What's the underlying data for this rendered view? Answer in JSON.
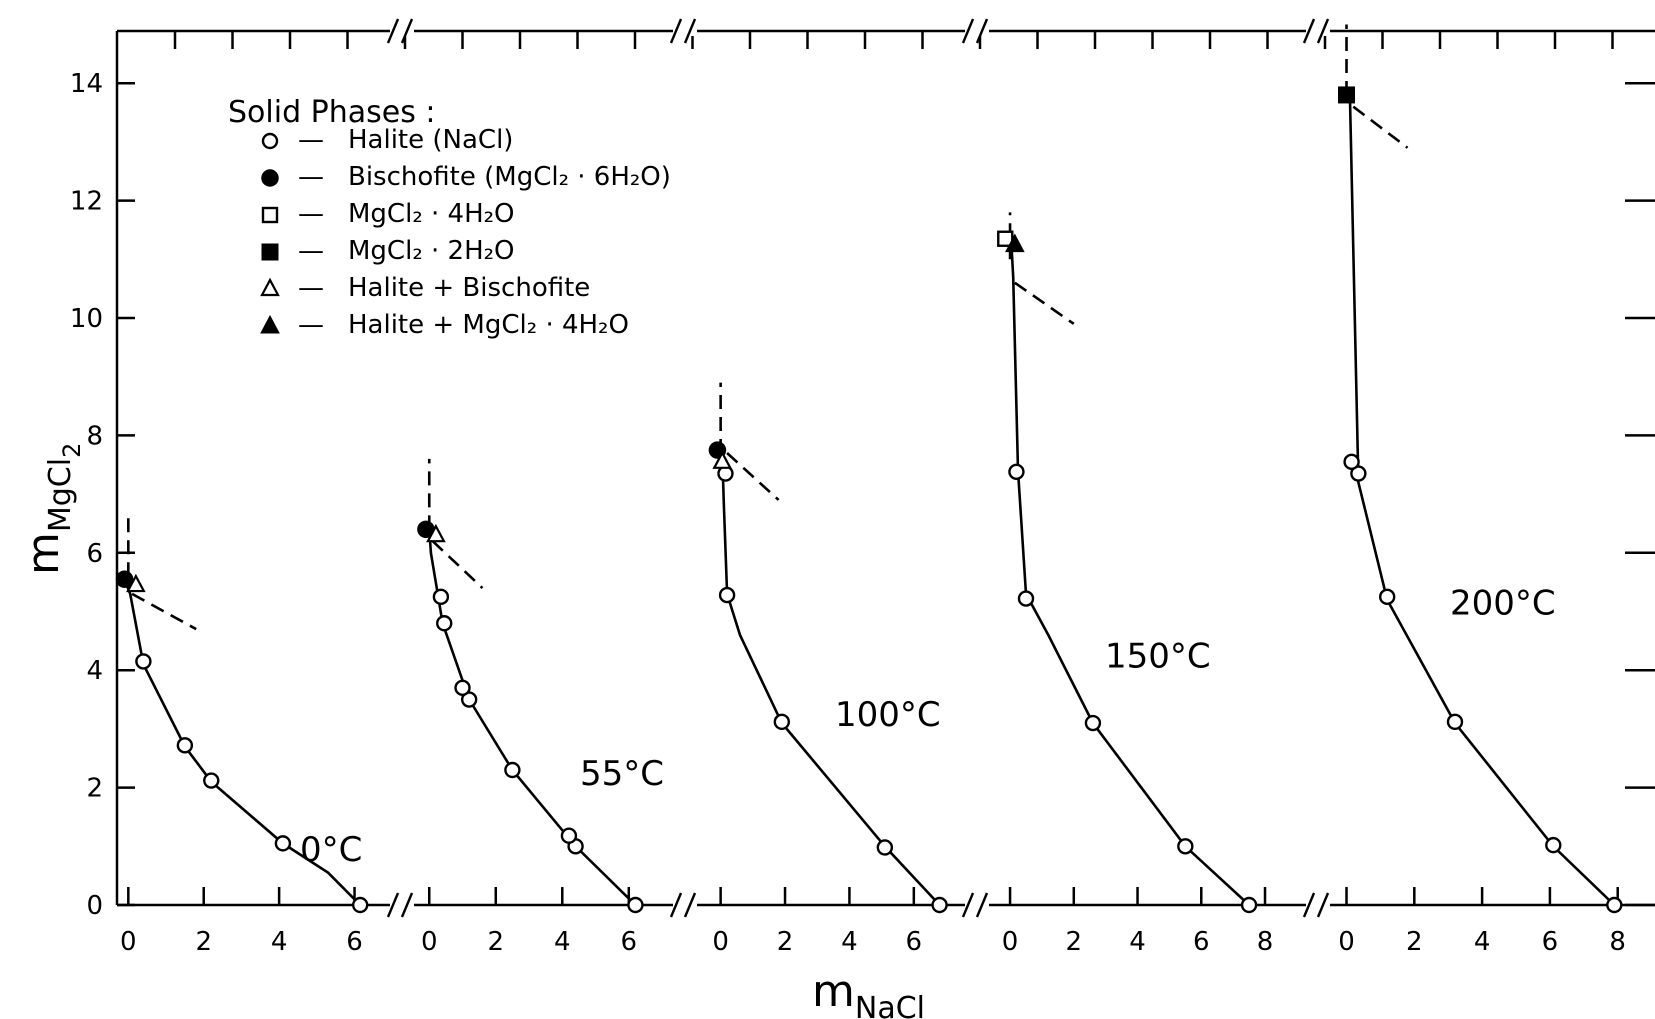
{
  "chart_data": {
    "type": "scatter",
    "xlabel_main": "m",
    "xlabel_sub": "NaCl",
    "ylabel_main": "m",
    "ylabel_sub": "MgCl",
    "ylabel_subsub": "2",
    "ylim": [
      0,
      14
    ],
    "y_ticks": [
      "0",
      "2",
      "4",
      "6",
      "8",
      "10",
      "12",
      "14"
    ],
    "grid": false,
    "legend": {
      "placement": "top-left",
      "title": "Solid  Phases :",
      "entries": [
        {
          "marker": "open-circle",
          "dash": "—",
          "label": "Halite (NaCl)"
        },
        {
          "marker": "filled-circle",
          "dash": "—",
          "label": "Bischofite (MgCl₂ · 6H₂O)"
        },
        {
          "marker": "open-square",
          "dash": "—",
          "label": "MgCl₂ · 4H₂O"
        },
        {
          "marker": "filled-square",
          "dash": "—",
          "label": "MgCl₂ · 2H₂O"
        },
        {
          "marker": "open-triangle",
          "dash": "—",
          "label": "Halite + Bischofite"
        },
        {
          "marker": "filled-triangle",
          "dash": "—",
          "label": "Halite + MgCl₂ · 4H₂O"
        }
      ]
    },
    "panels": [
      {
        "label": "0°C",
        "x_ticks": [
          "0",
          "2",
          "4",
          "6"
        ],
        "xlim": [
          -0.3,
          7.1
        ],
        "curve": [
          [
            6.15,
            0
          ],
          [
            5.3,
            0.55
          ],
          [
            4.1,
            1.05
          ],
          [
            2.2,
            2.1
          ],
          [
            1.5,
            2.7
          ],
          [
            0.4,
            4.1
          ],
          [
            0.05,
            5.3
          ],
          [
            -0.1,
            5.55
          ]
        ],
        "points": [
          {
            "x": 6.15,
            "y": 0.0,
            "marker": "open-circle"
          },
          {
            "x": 4.1,
            "y": 1.05,
            "marker": "open-circle"
          },
          {
            "x": 2.2,
            "y": 2.12,
            "marker": "open-circle"
          },
          {
            "x": 1.5,
            "y": 2.72,
            "marker": "open-circle"
          },
          {
            "x": 0.4,
            "y": 4.15,
            "marker": "open-circle"
          },
          {
            "x": -0.1,
            "y": 5.55,
            "marker": "filled-circle"
          },
          {
            "x": 0.2,
            "y": 5.45,
            "marker": "open-triangle"
          }
        ],
        "dashed": [
          [
            [
              0.0,
              5.6
            ],
            [
              0.0,
              6.6
            ]
          ],
          [
            [
              0.1,
              5.3
            ],
            [
              1.8,
              4.7
            ]
          ]
        ]
      },
      {
        "label": "55°C",
        "x_ticks": [
          "0",
          "2",
          "4",
          "6"
        ],
        "xlim": [
          -1.0,
          7.6
        ],
        "curve": [
          [
            6.2,
            0
          ],
          [
            4.4,
            1.0
          ],
          [
            2.5,
            2.3
          ],
          [
            1.2,
            3.5
          ],
          [
            0.4,
            4.8
          ],
          [
            0.05,
            6.0
          ],
          [
            0.0,
            6.4
          ]
        ],
        "points": [
          {
            "x": 6.2,
            "y": 0.0,
            "marker": "open-circle"
          },
          {
            "x": 4.4,
            "y": 1.0,
            "marker": "open-circle"
          },
          {
            "x": 4.2,
            "y": 1.18,
            "marker": "open-circle"
          },
          {
            "x": 2.5,
            "y": 2.3,
            "marker": "open-circle"
          },
          {
            "x": 1.2,
            "y": 3.5,
            "marker": "open-circle"
          },
          {
            "x": 1.0,
            "y": 3.7,
            "marker": "open-circle"
          },
          {
            "x": 0.45,
            "y": 4.8,
            "marker": "open-circle"
          },
          {
            "x": 0.35,
            "y": 5.25,
            "marker": "open-circle"
          },
          {
            "x": -0.1,
            "y": 6.4,
            "marker": "filled-circle"
          },
          {
            "x": 0.2,
            "y": 6.3,
            "marker": "open-triangle"
          }
        ],
        "dashed": [
          [
            [
              0.0,
              6.4
            ],
            [
              0.0,
              7.6
            ]
          ],
          [
            [
              0.1,
              6.2
            ],
            [
              1.6,
              5.4
            ]
          ]
        ]
      },
      {
        "label": "100°C",
        "x_ticks": [
          "0",
          "2",
          "4",
          "6"
        ],
        "xlim": [
          -1.2,
          7.9
        ],
        "curve": [
          [
            6.8,
            0
          ],
          [
            5.1,
            1.0
          ],
          [
            1.9,
            3.1
          ],
          [
            0.6,
            4.6
          ],
          [
            0.2,
            5.3
          ],
          [
            0.1,
            6.8
          ],
          [
            0.05,
            7.7
          ]
        ],
        "points": [
          {
            "x": 6.8,
            "y": 0.0,
            "marker": "open-circle"
          },
          {
            "x": 5.1,
            "y": 0.98,
            "marker": "open-circle"
          },
          {
            "x": 1.9,
            "y": 3.12,
            "marker": "open-circle"
          },
          {
            "x": 0.2,
            "y": 5.28,
            "marker": "open-circle"
          },
          {
            "x": 0.15,
            "y": 7.35,
            "marker": "open-circle"
          },
          {
            "x": -0.1,
            "y": 7.75,
            "marker": "filled-circle"
          },
          {
            "x": 0.05,
            "y": 7.55,
            "marker": "open-triangle"
          }
        ],
        "dashed": [
          [
            [
              0.0,
              7.7
            ],
            [
              0.0,
              8.9
            ]
          ],
          [
            [
              0.2,
              7.7
            ],
            [
              1.8,
              6.9
            ]
          ]
        ]
      },
      {
        "label": "150°C",
        "x_ticks": [
          "0",
          "2",
          "4",
          "6",
          "8"
        ],
        "xlim": [
          -1.1,
          9.6
        ],
        "curve": [
          [
            7.5,
            0
          ],
          [
            5.5,
            1.0
          ],
          [
            2.6,
            3.1
          ],
          [
            1.2,
            4.6
          ],
          [
            0.5,
            5.3
          ],
          [
            0.25,
            7.4
          ],
          [
            0.1,
            10.7
          ],
          [
            0.05,
            11.2
          ]
        ],
        "points": [
          {
            "x": 7.5,
            "y": 0.0,
            "marker": "open-circle"
          },
          {
            "x": 5.5,
            "y": 1.0,
            "marker": "open-circle"
          },
          {
            "x": 2.6,
            "y": 3.1,
            "marker": "open-circle"
          },
          {
            "x": 0.5,
            "y": 5.22,
            "marker": "open-circle"
          },
          {
            "x": 0.2,
            "y": 7.38,
            "marker": "open-circle"
          },
          {
            "x": -0.15,
            "y": 11.35,
            "marker": "open-square"
          },
          {
            "x": 0.15,
            "y": 11.25,
            "marker": "filled-triangle"
          }
        ],
        "dashed": [
          [
            [
              0.0,
              11.0
            ],
            [
              0.0,
              11.8
            ]
          ],
          [
            [
              0.15,
              10.6
            ],
            [
              2.0,
              9.9
            ]
          ]
        ]
      },
      {
        "label": "200°C",
        "x_ticks": [
          "0",
          "2",
          "4",
          "6",
          "8"
        ],
        "xlim": [
          -0.9,
          9.1
        ],
        "curve": [
          [
            7.9,
            0
          ],
          [
            6.1,
            1.0
          ],
          [
            3.2,
            3.1
          ],
          [
            1.2,
            5.2
          ],
          [
            0.35,
            7.2
          ],
          [
            0.1,
            13.8
          ]
        ],
        "points": [
          {
            "x": 7.9,
            "y": 0.0,
            "marker": "open-circle"
          },
          {
            "x": 6.1,
            "y": 1.02,
            "marker": "open-circle"
          },
          {
            "x": 3.2,
            "y": 3.12,
            "marker": "open-circle"
          },
          {
            "x": 1.2,
            "y": 5.25,
            "marker": "open-circle"
          },
          {
            "x": 0.35,
            "y": 7.35,
            "marker": "open-circle"
          },
          {
            "x": 0.15,
            "y": 7.55,
            "marker": "open-circle"
          },
          {
            "x": 0.0,
            "y": 13.8,
            "marker": "filled-square"
          }
        ],
        "dashed": [
          [
            [
              0.0,
              13.8
            ],
            [
              0.0,
              15.0
            ]
          ],
          [
            [
              0.2,
              13.6
            ],
            [
              1.8,
              12.9
            ]
          ]
        ]
      }
    ]
  }
}
